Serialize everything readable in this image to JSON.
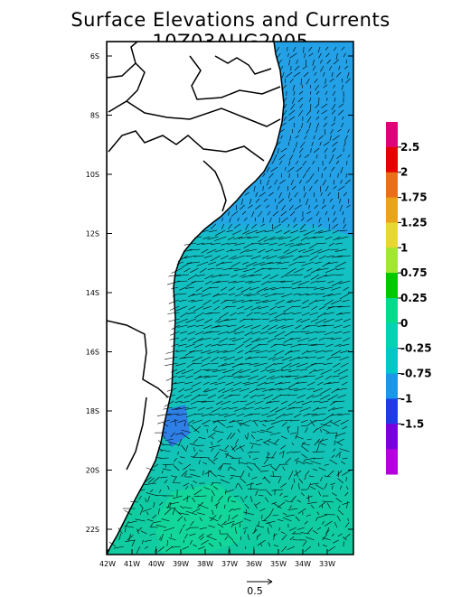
{
  "title": "Surface Elevations and Currents 10Z03AUG2005",
  "lat_labels": [
    "6S",
    "8S",
    "10S",
    "12S",
    "14S",
    "16S",
    "18S",
    "20S",
    "22S"
  ],
  "lon_labels": [
    "42W",
    "41W",
    "40W",
    "39W",
    "38W",
    "37W",
    "36W",
    "35W",
    "34W",
    "33W"
  ],
  "colorbar": {
    "colors": [
      "#e0007a",
      "#e80000",
      "#e8701c",
      "#e8a41c",
      "#e8d633",
      "#a0e632",
      "#00c800",
      "#00dc8c",
      "#00d2b4",
      "#00c8c8",
      "#1e96e6",
      "#1e3ce6",
      "#7800dc",
      "#b400dc"
    ],
    "labels": [
      "2.5",
      "2",
      "1.75",
      "1.25",
      "1",
      "0.75",
      "0.25",
      "0",
      "-0.25",
      "-0.75",
      "-1",
      "-1.5"
    ]
  },
  "reference_vector": {
    "label": "0.5"
  }
}
